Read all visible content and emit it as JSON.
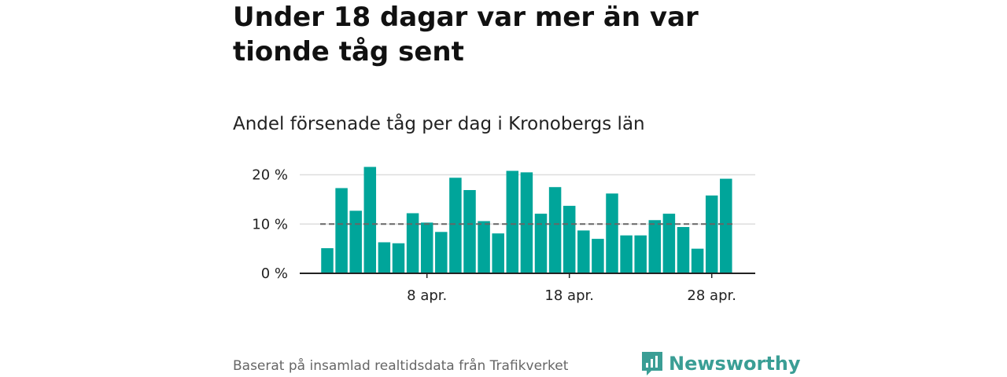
{
  "header": {
    "title": "Under 18 dagar var mer än var tionde tåg sent"
  },
  "footer": {
    "source": "Baserat på insamlad realtidsdata från Trafikverket",
    "logo": "Newsworthy",
    "logo_icon": "newsworthy-logo-icon"
  },
  "colors": {
    "bar": "#00a59a",
    "reference_line": "#666666",
    "gridline": "#dddddd",
    "baseline": "#222222",
    "logo": "#3a9e95"
  },
  "chart_data": {
    "type": "bar",
    "title": "Andel försenade tåg per dag i Kronobergs län",
    "xlabel": "",
    "ylabel": "",
    "x": [
      1,
      2,
      3,
      4,
      5,
      6,
      7,
      8,
      9,
      10,
      11,
      12,
      13,
      14,
      15,
      16,
      17,
      18,
      19,
      20,
      21,
      22,
      23,
      24,
      25,
      26,
      27,
      28,
      29,
      30
    ],
    "x_unit": "apr.",
    "values": [
      5.1,
      17.3,
      12.7,
      21.6,
      6.3,
      6.1,
      12.2,
      10.3,
      8.4,
      19.4,
      16.9,
      10.6,
      8.1,
      20.8,
      20.5,
      12.1,
      17.5,
      13.7,
      8.7,
      7.0,
      16.2,
      7.7,
      7.7,
      10.8,
      12.1,
      9.4,
      5.0,
      15.8,
      19.2,
      null
    ],
    "ylim": [
      0,
      22
    ],
    "yticks": [
      0,
      10,
      20
    ],
    "ytick_labels": [
      "0 %",
      "10 %",
      "20 %"
    ],
    "xticks": [
      8,
      18,
      28
    ],
    "xtick_labels": [
      "8 apr.",
      "18 apr.",
      "28 apr."
    ],
    "reference_line": {
      "value": 10,
      "style": "dashed"
    },
    "grid": true,
    "legend": "none"
  }
}
